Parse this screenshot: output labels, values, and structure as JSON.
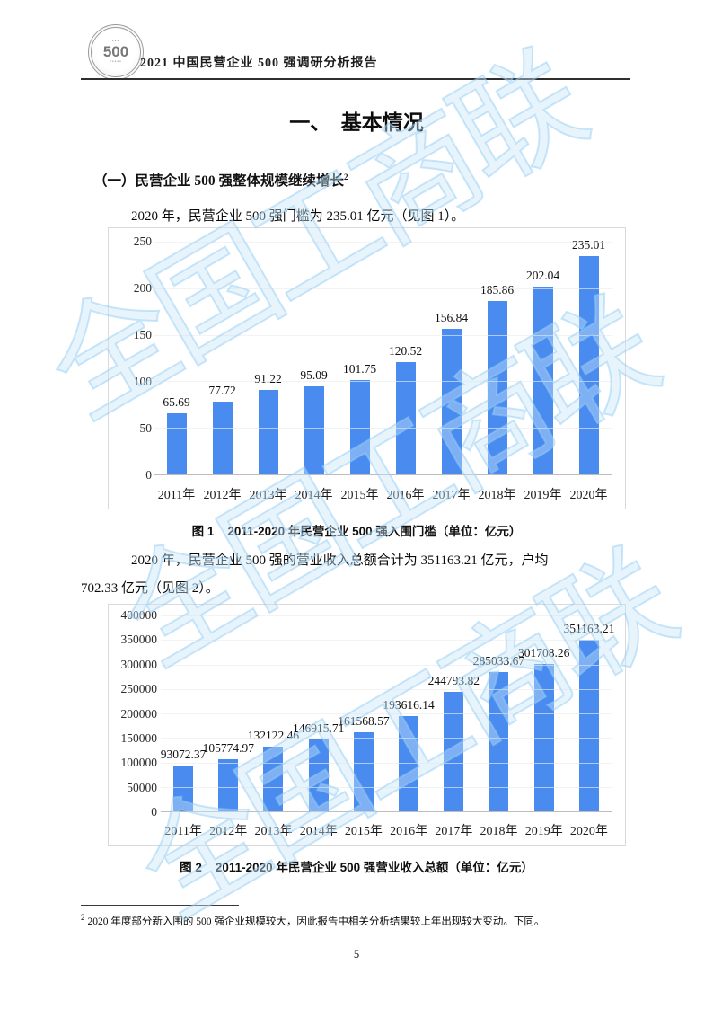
{
  "page": {
    "header": {
      "logo_text": "500",
      "title": "2021 中国民营企业 500 强调研分析报告"
    },
    "main_title": "一、　基本情况",
    "section": {
      "label": "（一）民营企业 500 强整体规模继续增长",
      "footnote_ref": "2"
    },
    "paragraphs": {
      "p1": "2020 年，民营企业 500 强门槛为 235.01 亿元（见图 1）。",
      "p2_line1": "2020 年，民营企业 500 强的营业收入总额合计为 351163.21 亿元，户均",
      "p2_line2": "702.33 亿元（见图 2）。"
    },
    "captions": {
      "fig1_label": "图 1",
      "fig1_text": "2011-2020 年民营企业 500 强入围门槛（单位：亿元）",
      "fig2_label": "图 2",
      "fig2_text": "2011-2020 年民营企业 500 强营业收入总额（单位：亿元）"
    },
    "footnote": {
      "marker": "2",
      "text": "2020 年度部分新入围的 500 强企业规模较大，因此报告中相关分析结果较上年出现较大变动。下同。"
    },
    "page_number": "5",
    "watermark_text": "全国工商联",
    "colors": {
      "bar_blue": "#4a8bf0",
      "watermark_blue": "#94cef6",
      "grid_gray": "#e5e5e5"
    }
  },
  "chart_data": [
    {
      "type": "bar",
      "title": "图 1 2011-2020 年民营企业 500 强入围门槛（单位：亿元）",
      "unit": "亿元",
      "categories": [
        "2011年",
        "2012年",
        "2013年",
        "2014年",
        "2015年",
        "2016年",
        "2017年",
        "2018年",
        "2019年",
        "2020年"
      ],
      "values": [
        65.69,
        77.72,
        91.22,
        95.09,
        101.75,
        120.52,
        156.84,
        185.86,
        202.04,
        235.01
      ],
      "xlabel": "",
      "ylabel": "",
      "ylim": [
        0,
        250
      ],
      "yticks": [
        0,
        50,
        100,
        150,
        200,
        250
      ],
      "grid": true,
      "legend": "none",
      "bar_color": "#4a8bf0"
    },
    {
      "type": "bar",
      "title": "图 2 2011-2020 年民营企业 500 强营业收入总额（单位：亿元）",
      "unit": "亿元",
      "categories": [
        "2011年",
        "2012年",
        "2013年",
        "2014年",
        "2015年",
        "2016年",
        "2017年",
        "2018年",
        "2019年",
        "2020年"
      ],
      "values": [
        93072.37,
        105774.97,
        132122.46,
        146915.71,
        161568.57,
        193616.14,
        244793.82,
        285033.67,
        301708.26,
        351163.21
      ],
      "xlabel": "",
      "ylabel": "",
      "ylim": [
        0,
        400000
      ],
      "yticks": [
        0,
        50000,
        100000,
        150000,
        200000,
        250000,
        300000,
        350000,
        400000
      ],
      "grid": true,
      "legend": "none",
      "bar_color": "#4a8bf0"
    }
  ]
}
